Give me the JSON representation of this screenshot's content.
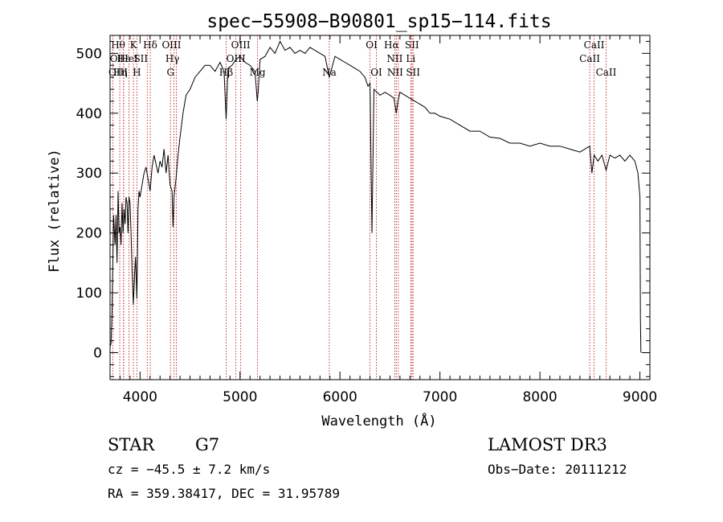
{
  "chart_data": {
    "type": "line",
    "title": "spec−55908−B90801_sp15−114.fits",
    "xlabel": "Wavelength (Å)",
    "ylabel": "Flux (relative)",
    "xlim": [
      3700,
      9100
    ],
    "ylim": [
      -45,
      530
    ],
    "xticks": [
      4000,
      5000,
      6000,
      7000,
      8000,
      9000
    ],
    "yticks": [
      0,
      100,
      200,
      300,
      400,
      500
    ],
    "series": [
      {
        "x": [
          3700,
          3710,
          3720,
          3735,
          3750,
          3760,
          3770,
          3780,
          3790,
          3800,
          3810,
          3820,
          3830,
          3840,
          3850,
          3860,
          3870,
          3880,
          3890,
          3900,
          3910,
          3920,
          3933,
          3945,
          3955,
          3968,
          3980,
          3990,
          4000,
          4020,
          4040,
          4060,
          4080,
          4101,
          4120,
          4140,
          4160,
          4180,
          4200,
          4220,
          4240,
          4260,
          4280,
          4300,
          4320,
          4330,
          4340,
          4360,
          4380,
          4400,
          4430,
          4460,
          4500,
          4550,
          4600,
          4650,
          4700,
          4750,
          4800,
          4840,
          4861,
          4880,
          4920,
          4960,
          5000,
          5050,
          5100,
          5150,
          5173,
          5183,
          5200,
          5250,
          5300,
          5350,
          5400,
          5450,
          5500,
          5550,
          5600,
          5650,
          5700,
          5750,
          5800,
          5850,
          5893,
          5950,
          6000,
          6050,
          6100,
          6150,
          6200,
          6250,
          6280,
          6300,
          6320,
          6340,
          6400,
          6450,
          6500,
          6540,
          6563,
          6580,
          6600,
          6650,
          6700,
          6750,
          6800,
          6850,
          6900,
          6950,
          7000,
          7100,
          7200,
          7300,
          7400,
          7500,
          7600,
          7700,
          7800,
          7900,
          8000,
          8100,
          8200,
          8300,
          8400,
          8498,
          8520,
          8542,
          8580,
          8620,
          8662,
          8700,
          8750,
          8800,
          8850,
          8900,
          8950,
          8980,
          9000,
          9005,
          9010
        ],
        "y": [
          10,
          15,
          70,
          230,
          180,
          230,
          150,
          270,
          200,
          210,
          180,
          250,
          200,
          240,
          215,
          260,
          250,
          200,
          260,
          250,
          200,
          140,
          80,
          130,
          160,
          90,
          240,
          270,
          260,
          280,
          300,
          310,
          290,
          270,
          310,
          330,
          315,
          300,
          320,
          310,
          340,
          300,
          330,
          280,
          270,
          210,
          260,
          290,
          330,
          360,
          400,
          430,
          440,
          460,
          470,
          480,
          480,
          470,
          485,
          470,
          390,
          475,
          480,
          490,
          495,
          485,
          480,
          470,
          420,
          440,
          490,
          495,
          510,
          500,
          520,
          505,
          510,
          500,
          505,
          500,
          510,
          505,
          500,
          495,
          460,
          495,
          490,
          485,
          480,
          475,
          470,
          460,
          445,
          450,
          200,
          440,
          430,
          435,
          430,
          425,
          400,
          420,
          435,
          430,
          425,
          420,
          415,
          410,
          400,
          400,
          395,
          390,
          380,
          370,
          370,
          360,
          358,
          350,
          350,
          345,
          350,
          345,
          345,
          340,
          335,
          345,
          300,
          330,
          320,
          330,
          305,
          330,
          325,
          330,
          320,
          330,
          320,
          300,
          260,
          60,
          0
        ]
      }
    ],
    "line_markers": [
      {
        "label": "Hθ",
        "x": 3797,
        "row": 0,
        "dx": -2
      },
      {
        "label": "K",
        "x": 3934,
        "row": 0,
        "dx": 0
      },
      {
        "label": "Hδ",
        "x": 4102,
        "row": 0,
        "dx": 0
      },
      {
        "label": "OIII",
        "x": 4363,
        "row": 0,
        "dx": -6
      },
      {
        "label": "OIII",
        "x": 5007,
        "row": 0,
        "dx": 0
      },
      {
        "label": "OI",
        "x": 6300,
        "row": 0,
        "dx": 2
      },
      {
        "label": "Hα",
        "x": 6563,
        "row": 0,
        "dx": -6
      },
      {
        "label": "SII",
        "x": 6720,
        "row": 0,
        "dx": 0
      },
      {
        "label": "CaII",
        "x": 8542,
        "row": 0,
        "dx": 0
      },
      {
        "label": "OII",
        "x": 3727,
        "row": 1,
        "dx": 6
      },
      {
        "label": "Hε",
        "x": 3835,
        "row": 1,
        "dx": 0
      },
      {
        "label": "HeI",
        "x": 3889,
        "row": 1,
        "dx": 0
      },
      {
        "label": "SII",
        "x": 4072,
        "row": 1,
        "dx": -8
      },
      {
        "label": "Hγ",
        "x": 4340,
        "row": 1,
        "dx": -2
      },
      {
        "label": "OIII",
        "x": 4959,
        "row": 1,
        "dx": 0
      },
      {
        "label": "NII",
        "x": 6548,
        "row": 1,
        "dx": 0
      },
      {
        "label": "Li",
        "x": 6708,
        "row": 1,
        "dx": 0
      },
      {
        "label": "CaII",
        "x": 8498,
        "row": 1,
        "dx": 0
      },
      {
        "label": "OIII",
        "x": 3700,
        "row": 2,
        "dx": 10
      },
      {
        "label": "Hη",
        "x": 3835,
        "row": 2,
        "dx": -4
      },
      {
        "label": "H",
        "x": 3968,
        "row": 2,
        "dx": 0
      },
      {
        "label": "G",
        "x": 4305,
        "row": 2,
        "dx": 0
      },
      {
        "label": "Hβ",
        "x": 4861,
        "row": 2,
        "dx": 0
      },
      {
        "label": "Mg",
        "x": 5175,
        "row": 2,
        "dx": 0
      },
      {
        "label": "Na",
        "x": 5893,
        "row": 2,
        "dx": 0
      },
      {
        "label": "OI",
        "x": 6364,
        "row": 2,
        "dx": 0
      },
      {
        "label": "NII",
        "x": 6584,
        "row": 2,
        "dx": -4
      },
      {
        "label": "SII",
        "x": 6731,
        "row": 2,
        "dx": 0
      },
      {
        "label": "CaII",
        "x": 8662,
        "row": 2,
        "dx": 0
      }
    ],
    "grid": false,
    "legend": "none"
  },
  "info": {
    "class": "STAR",
    "subclass": "G7",
    "survey": "LAMOST DR3",
    "cz": "cz = −45.5 ± 7.2 km/s",
    "obsdate": "Obs−Date: 20111212",
    "radec": "RA = 359.38417, DEC =  31.95789"
  },
  "colors": {
    "marker_line": "#c00000",
    "spectrum": "#000000"
  }
}
